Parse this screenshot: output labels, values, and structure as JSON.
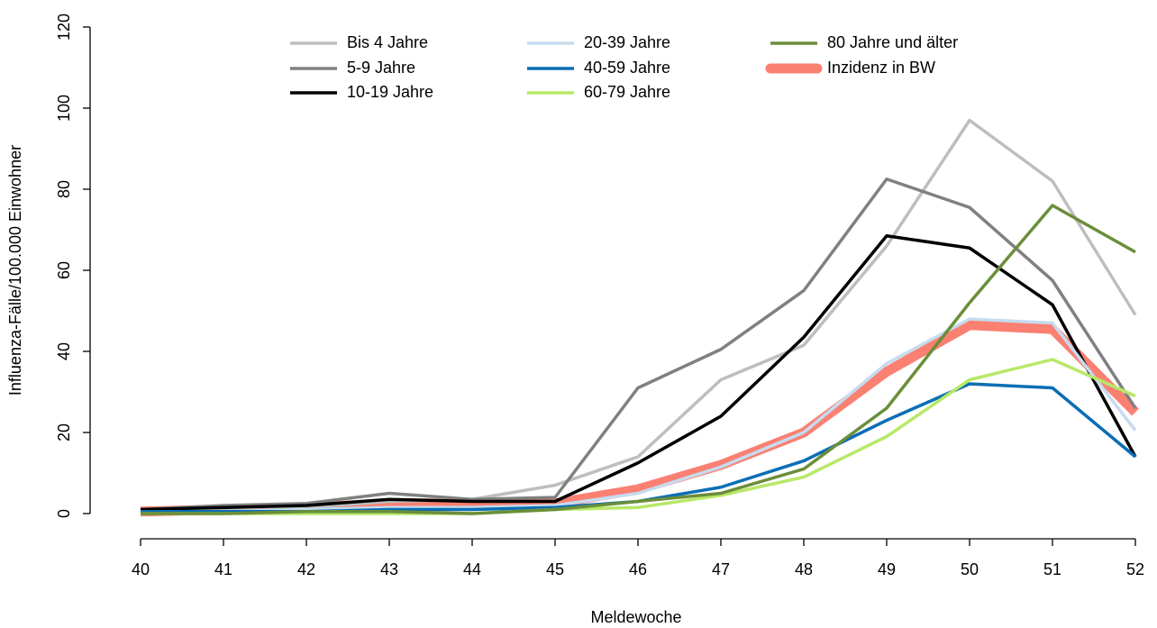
{
  "chart_data": {
    "type": "line",
    "x_label": "Meldewoche",
    "y_label": "Influenza-Fälle/100.000 Einwohner",
    "x": [
      40,
      41,
      42,
      43,
      44,
      45,
      46,
      47,
      48,
      49,
      50,
      51,
      52
    ],
    "xlim": [
      40,
      52
    ],
    "xticks": [
      40,
      41,
      42,
      43,
      44,
      45,
      46,
      47,
      48,
      49,
      50,
      51,
      52
    ],
    "ylim": [
      0,
      120
    ],
    "yticks": [
      0,
      20,
      40,
      60,
      80,
      100,
      120
    ],
    "legend": "top",
    "series": [
      {
        "name": "Bis 4 Jahre",
        "color": "#bebebe",
        "values": [
          0.5,
          1,
          1.5,
          3,
          3.5,
          7,
          14,
          33,
          41.5,
          66,
          97,
          82,
          49
        ]
      },
      {
        "name": "5-9 Jahre",
        "color": "#808080",
        "values": [
          1,
          2,
          2.5,
          5,
          3.5,
          4,
          31,
          40.5,
          55,
          82.5,
          75.5,
          57.5,
          26
        ]
      },
      {
        "name": "10-19 Jahre",
        "color": "#000000",
        "values": [
          1,
          1.5,
          2,
          3.5,
          3,
          3,
          12.5,
          24,
          43.5,
          68.5,
          65.5,
          51.5,
          14
        ]
      },
      {
        "name": "20-39 Jahre",
        "color": "#c6dbef",
        "values": [
          0.5,
          0.5,
          1,
          1.5,
          1.5,
          2,
          5,
          11.5,
          20,
          37,
          48,
          47,
          20.5
        ]
      },
      {
        "name": "40-59 Jahre",
        "color": "#0a6eb4",
        "values": [
          0.5,
          0.5,
          0.5,
          1,
          1,
          1.5,
          3,
          6.5,
          13,
          23,
          32,
          31,
          14
        ]
      },
      {
        "name": "60-79 Jahre",
        "color": "#b8e868",
        "values": [
          0,
          0,
          0,
          0,
          0,
          1,
          1.5,
          4.5,
          9,
          19,
          33,
          38,
          29
        ]
      },
      {
        "name": "80 Jahre und älter",
        "color": "#6b8e3a",
        "values": [
          0,
          0,
          0.5,
          0.5,
          0,
          1,
          3,
          5,
          11,
          26,
          52,
          76,
          64.5
        ]
      },
      {
        "name": "Inzidenz in BW",
        "color": "#fa8072",
        "values": [
          0.5,
          1,
          1.5,
          2.5,
          2.5,
          2.5,
          6,
          12,
          20,
          35,
          46.5,
          45.5,
          25
        ]
      }
    ]
  }
}
